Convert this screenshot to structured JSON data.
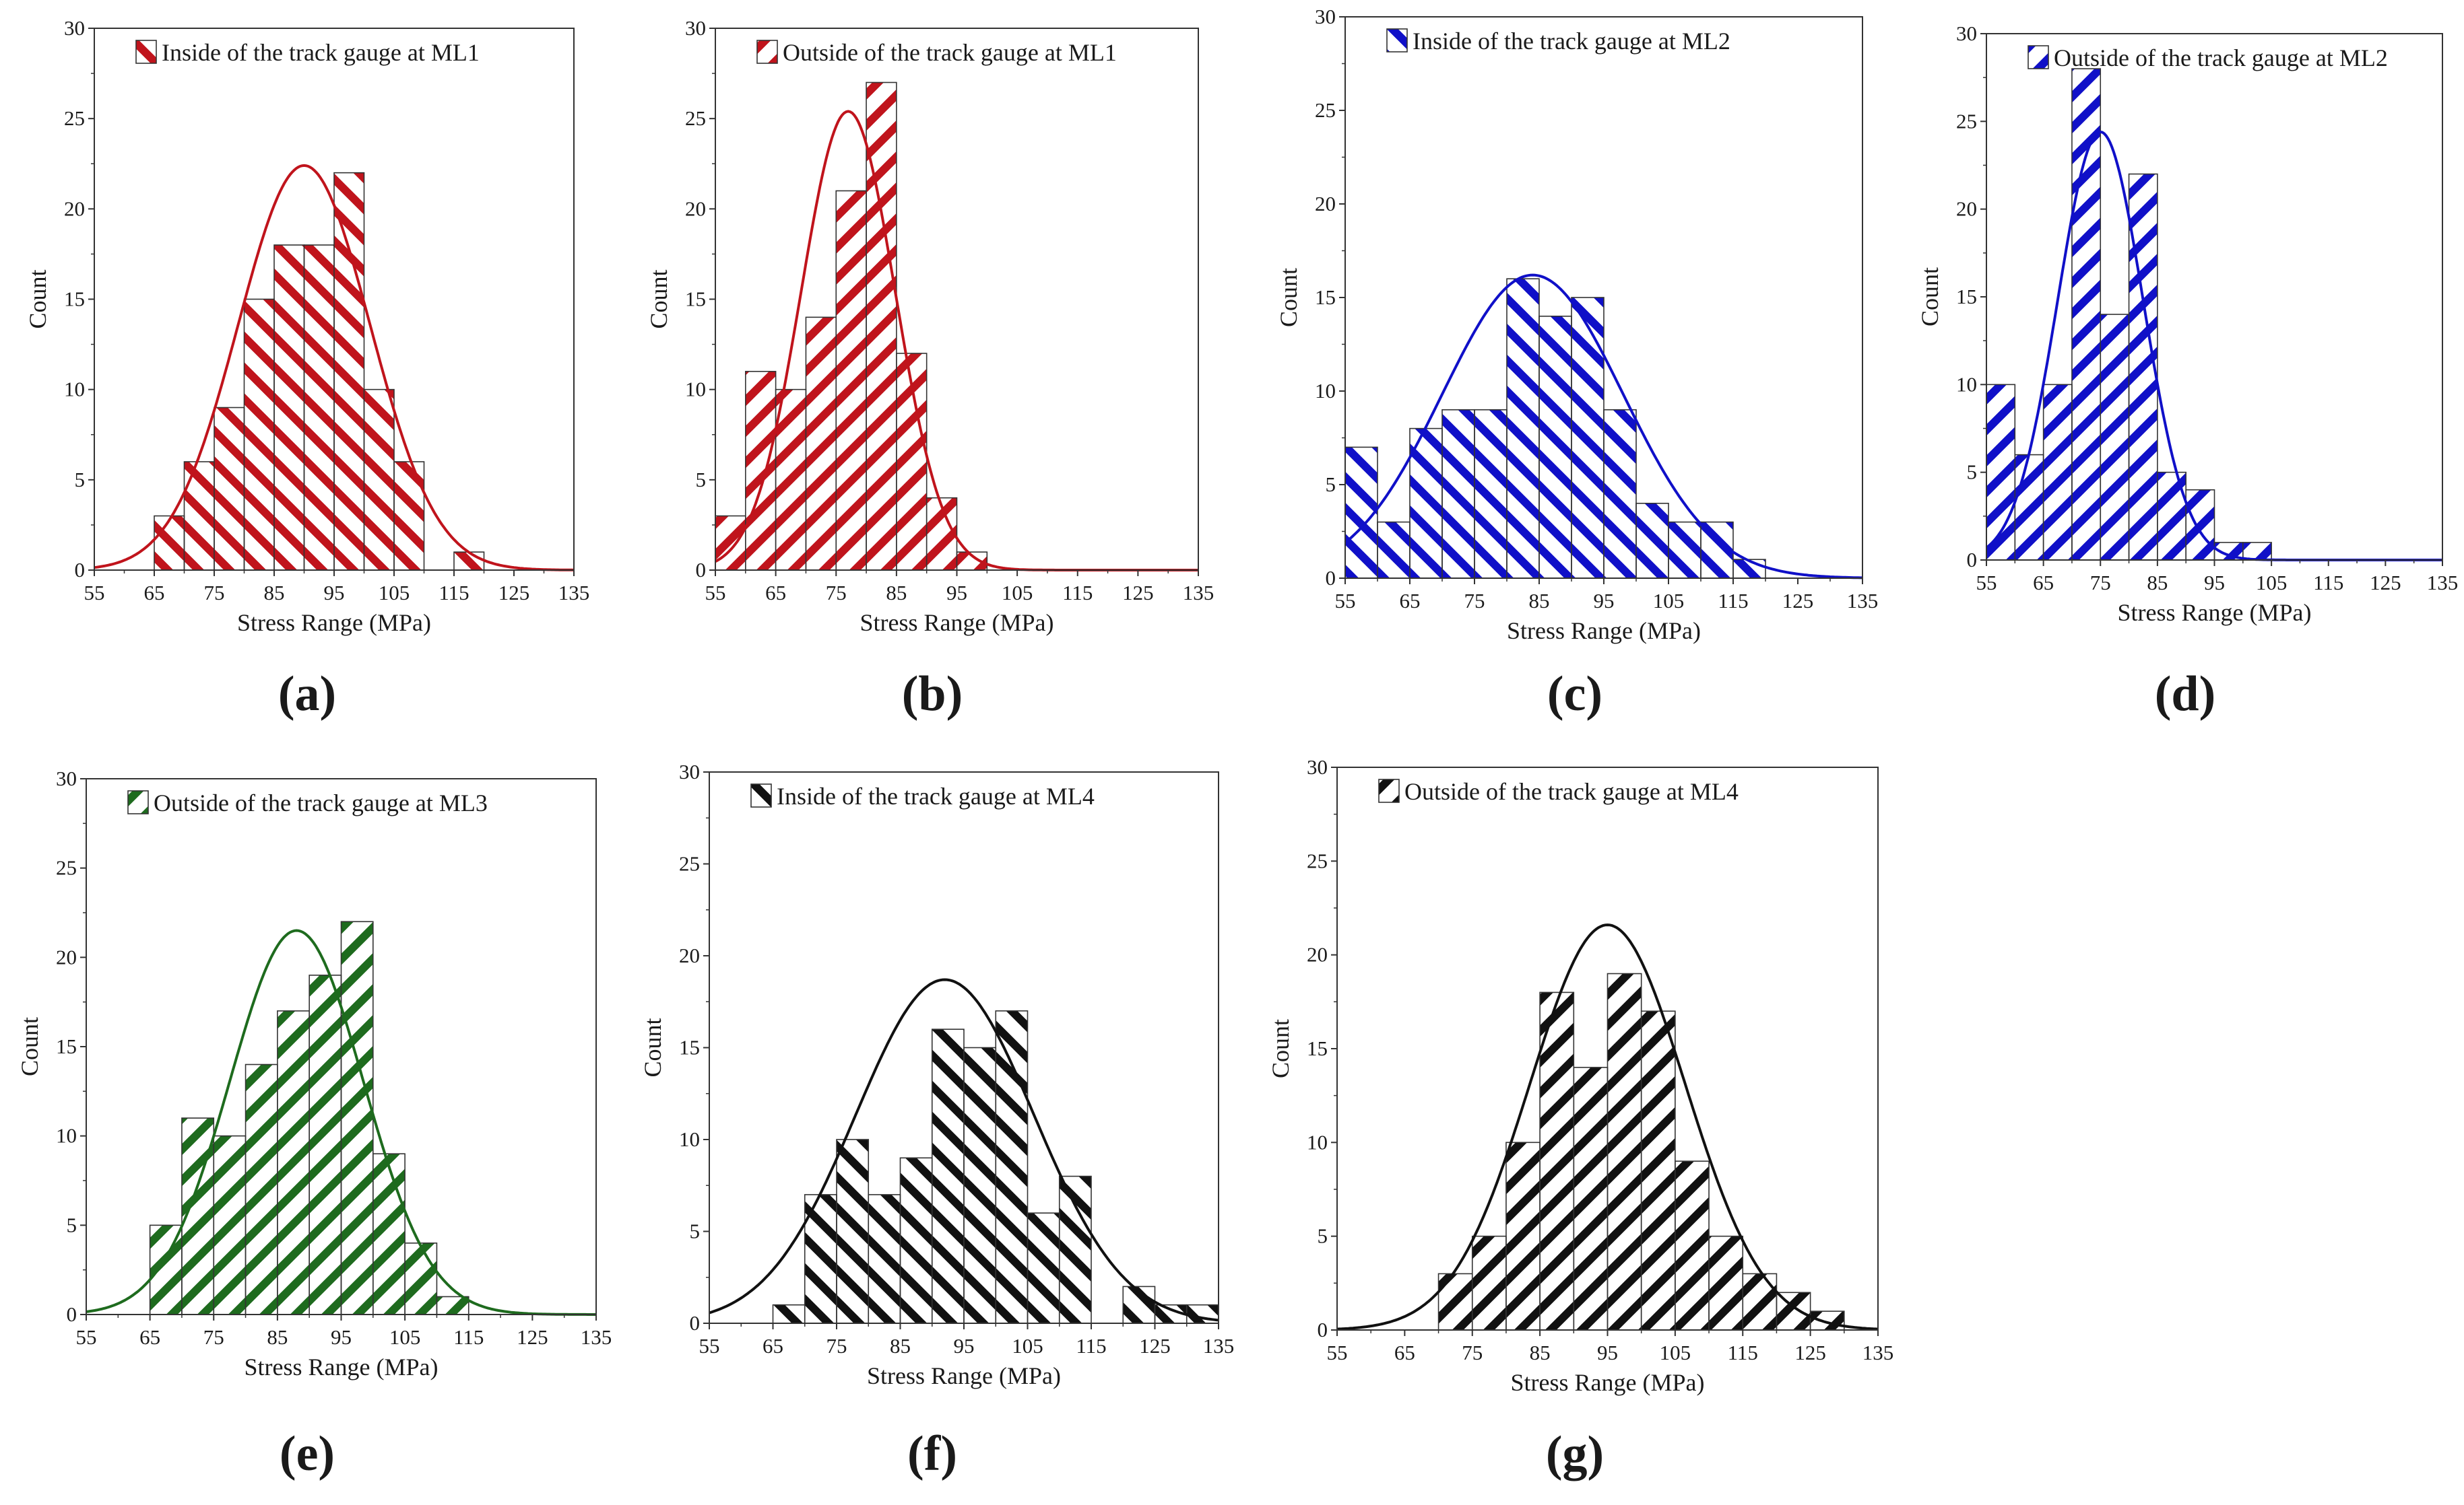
{
  "figure": {
    "panels": [
      {
        "id": "a",
        "label": "a",
        "color": "#c0141c",
        "hatch": "down"
      },
      {
        "id": "b",
        "label": "b",
        "color": "#c0141c",
        "hatch": "up"
      },
      {
        "id": "c",
        "label": "c",
        "color": "#1010c8",
        "hatch": "down"
      },
      {
        "id": "d",
        "label": "d",
        "color": "#1010c8",
        "hatch": "up"
      },
      {
        "id": "e",
        "label": "e",
        "color": "#1e6b1e",
        "hatch": "up"
      },
      {
        "id": "f",
        "label": "f",
        "color": "#111111",
        "hatch": "down"
      },
      {
        "id": "g",
        "label": "g",
        "color": "#111111",
        "hatch": "up"
      }
    ]
  },
  "chart_data": [
    {
      "type": "bar",
      "title": "",
      "legend": "Inside of the track gauge at ML1",
      "xlabel": "Stress Range (MPa)",
      "ylabel": "Count",
      "xlim": [
        55,
        135
      ],
      "ylim": [
        0,
        30
      ],
      "xticks": [
        55,
        65,
        75,
        85,
        95,
        105,
        115,
        125,
        135
      ],
      "yticks": [
        0,
        5,
        10,
        15,
        20,
        25,
        30
      ],
      "bin_width": 5,
      "bins": [
        {
          "x": 65,
          "count": 3
        },
        {
          "x": 70,
          "count": 6
        },
        {
          "x": 75,
          "count": 9
        },
        {
          "x": 80,
          "count": 15
        },
        {
          "x": 85,
          "count": 18
        },
        {
          "x": 90,
          "count": 18
        },
        {
          "x": 95,
          "count": 22
        },
        {
          "x": 100,
          "count": 10
        },
        {
          "x": 105,
          "count": 6
        },
        {
          "x": 115,
          "count": 1
        }
      ],
      "fit": {
        "type": "normal",
        "mean": 90,
        "sd": 11,
        "peak": 22.4
      }
    },
    {
      "type": "bar",
      "title": "",
      "legend": "Outside of the track gauge at ML1",
      "xlabel": "Stress Range (MPa)",
      "ylabel": "Count",
      "xlim": [
        55,
        135
      ],
      "ylim": [
        0,
        30
      ],
      "xticks": [
        55,
        65,
        75,
        85,
        95,
        105,
        115,
        125,
        135
      ],
      "yticks": [
        0,
        5,
        10,
        15,
        20,
        25,
        30
      ],
      "bin_width": 5,
      "bins": [
        {
          "x": 55,
          "count": 3
        },
        {
          "x": 60,
          "count": 11
        },
        {
          "x": 65,
          "count": 10
        },
        {
          "x": 70,
          "count": 14
        },
        {
          "x": 75,
          "count": 21
        },
        {
          "x": 80,
          "count": 27
        },
        {
          "x": 85,
          "count": 12
        },
        {
          "x": 90,
          "count": 4
        },
        {
          "x": 95,
          "count": 1
        }
      ],
      "fit": {
        "type": "normal",
        "mean": 77,
        "sd": 7.8,
        "peak": 25.4
      }
    },
    {
      "type": "bar",
      "title": "",
      "legend": "Inside of the track gauge at ML2",
      "xlabel": "Stress Range (MPa)",
      "ylabel": "Count",
      "xlim": [
        55,
        135
      ],
      "ylim": [
        0,
        30
      ],
      "xticks": [
        55,
        65,
        75,
        85,
        95,
        105,
        115,
        125,
        135
      ],
      "yticks": [
        0,
        5,
        10,
        15,
        20,
        25,
        30
      ],
      "bin_width": 5,
      "bins": [
        {
          "x": 55,
          "count": 7
        },
        {
          "x": 60,
          "count": 3
        },
        {
          "x": 65,
          "count": 8
        },
        {
          "x": 70,
          "count": 9
        },
        {
          "x": 75,
          "count": 9
        },
        {
          "x": 80,
          "count": 16
        },
        {
          "x": 85,
          "count": 14
        },
        {
          "x": 90,
          "count": 15
        },
        {
          "x": 95,
          "count": 9
        },
        {
          "x": 100,
          "count": 4
        },
        {
          "x": 105,
          "count": 3
        },
        {
          "x": 110,
          "count": 3
        },
        {
          "x": 115,
          "count": 1
        }
      ],
      "fit": {
        "type": "normal",
        "mean": 84,
        "sd": 14,
        "peak": 16.2
      }
    },
    {
      "type": "bar",
      "title": "",
      "legend": "Outside of the track gauge at ML2",
      "xlabel": "Stress Range (MPa)",
      "ylabel": "Count",
      "xlim": [
        55,
        135
      ],
      "ylim": [
        0,
        30
      ],
      "xticks": [
        55,
        65,
        75,
        85,
        95,
        105,
        115,
        125,
        135
      ],
      "yticks": [
        0,
        5,
        10,
        15,
        20,
        25,
        30
      ],
      "bin_width": 5,
      "bins": [
        {
          "x": 55,
          "count": 10
        },
        {
          "x": 60,
          "count": 6
        },
        {
          "x": 65,
          "count": 10
        },
        {
          "x": 70,
          "count": 28
        },
        {
          "x": 75,
          "count": 14
        },
        {
          "x": 80,
          "count": 22
        },
        {
          "x": 85,
          "count": 5
        },
        {
          "x": 90,
          "count": 4
        },
        {
          "x": 95,
          "count": 1
        },
        {
          "x": 100,
          "count": 1
        }
      ],
      "fit": {
        "type": "normal",
        "mean": 75,
        "sd": 7.5,
        "peak": 24.4
      }
    },
    {
      "type": "bar",
      "title": "",
      "legend": "Outside of the track gauge at ML3",
      "xlabel": "Stress Range (MPa)",
      "ylabel": "Count",
      "xlim": [
        55,
        135
      ],
      "ylim": [
        0,
        30
      ],
      "xticks": [
        55,
        65,
        75,
        85,
        95,
        105,
        115,
        125,
        135
      ],
      "yticks": [
        0,
        5,
        10,
        15,
        20,
        25,
        30
      ],
      "bin_width": 5,
      "bins": [
        {
          "x": 65,
          "count": 5
        },
        {
          "x": 70,
          "count": 11
        },
        {
          "x": 75,
          "count": 10
        },
        {
          "x": 80,
          "count": 14
        },
        {
          "x": 85,
          "count": 17
        },
        {
          "x": 90,
          "count": 19
        },
        {
          "x": 95,
          "count": 22
        },
        {
          "x": 100,
          "count": 9
        },
        {
          "x": 105,
          "count": 4
        },
        {
          "x": 110,
          "count": 1
        }
      ],
      "fit": {
        "type": "normal",
        "mean": 88,
        "sd": 10.5,
        "peak": 21.5
      }
    },
    {
      "type": "bar",
      "title": "",
      "legend": "Inside of the track gauge at ML4",
      "xlabel": "Stress Range (MPa)",
      "ylabel": "Count",
      "xlim": [
        55,
        135
      ],
      "ylim": [
        0,
        30
      ],
      "xticks": [
        55,
        65,
        75,
        85,
        95,
        105,
        115,
        125,
        135
      ],
      "yticks": [
        0,
        5,
        10,
        15,
        20,
        25,
        30
      ],
      "bin_width": 5,
      "bins": [
        {
          "x": 65,
          "count": 1
        },
        {
          "x": 70,
          "count": 7
        },
        {
          "x": 75,
          "count": 10
        },
        {
          "x": 80,
          "count": 7
        },
        {
          "x": 85,
          "count": 9
        },
        {
          "x": 90,
          "count": 16
        },
        {
          "x": 95,
          "count": 15
        },
        {
          "x": 100,
          "count": 17
        },
        {
          "x": 105,
          "count": 6
        },
        {
          "x": 110,
          "count": 8
        },
        {
          "x": 120,
          "count": 2
        },
        {
          "x": 125,
          "count": 1
        },
        {
          "x": 130,
          "count": 1
        }
      ],
      "fit": {
        "type": "normal",
        "mean": 92,
        "sd": 14,
        "peak": 18.7
      }
    },
    {
      "type": "bar",
      "title": "",
      "legend": "Outside of the track gauge at ML4",
      "xlabel": "Stress Range (MPa)",
      "ylabel": "Count",
      "xlim": [
        55,
        135
      ],
      "ylim": [
        0,
        30
      ],
      "xticks": [
        55,
        65,
        75,
        85,
        95,
        105,
        115,
        125,
        135
      ],
      "yticks": [
        0,
        5,
        10,
        15,
        20,
        25,
        30
      ],
      "bin_width": 5,
      "bins": [
        {
          "x": 70,
          "count": 3
        },
        {
          "x": 75,
          "count": 5
        },
        {
          "x": 80,
          "count": 10
        },
        {
          "x": 85,
          "count": 18
        },
        {
          "x": 90,
          "count": 14
        },
        {
          "x": 95,
          "count": 19
        },
        {
          "x": 100,
          "count": 17
        },
        {
          "x": 105,
          "count": 9
        },
        {
          "x": 110,
          "count": 5
        },
        {
          "x": 115,
          "count": 3
        },
        {
          "x": 120,
          "count": 2
        },
        {
          "x": 125,
          "count": 1
        }
      ],
      "fit": {
        "type": "normal",
        "mean": 95,
        "sd": 11.5,
        "peak": 21.6
      }
    }
  ]
}
